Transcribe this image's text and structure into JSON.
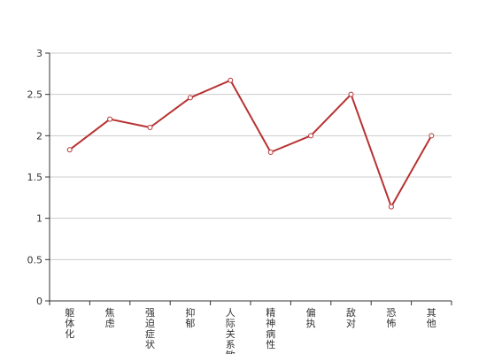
{
  "chart_data": {
    "type": "line",
    "categories": [
      "躯体化",
      "焦虑",
      "强迫症状",
      "抑郁",
      "人际关系敏感",
      "精神病性",
      "偏执",
      "敌对",
      "恐怖",
      "其他"
    ],
    "series": [
      {
        "values": [
          1.83,
          2.2,
          2.1,
          2.46,
          2.67,
          1.8,
          2.0,
          2.5,
          1.14,
          2.0
        ]
      }
    ],
    "ylim": [
      0,
      3
    ],
    "yticks": [
      "0",
      "0.5",
      "1",
      "1.5",
      "2",
      "2.5",
      "3"
    ],
    "grid": true,
    "line_color": "#b83232",
    "grid_color": "#cccccc",
    "axis_color": "#333333"
  }
}
